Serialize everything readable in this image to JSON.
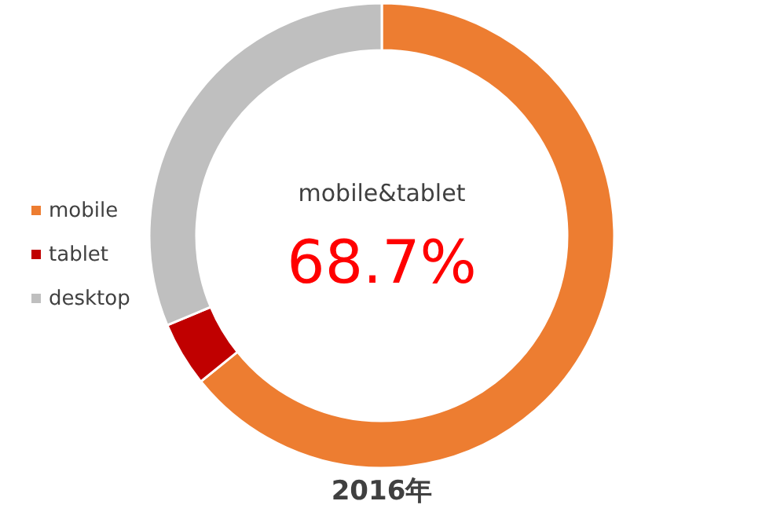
{
  "chart_data": {
    "type": "donut",
    "title": "2016年",
    "categories": [
      "mobile",
      "tablet",
      "desktop"
    ],
    "values": [
      64.2,
      4.5,
      31.3
    ],
    "colors": [
      "#ed7d31",
      "#c00000",
      "#bfbfbf"
    ],
    "annotations": [
      "mobile&tablet",
      "68.7%"
    ],
    "legend": "left"
  }
}
